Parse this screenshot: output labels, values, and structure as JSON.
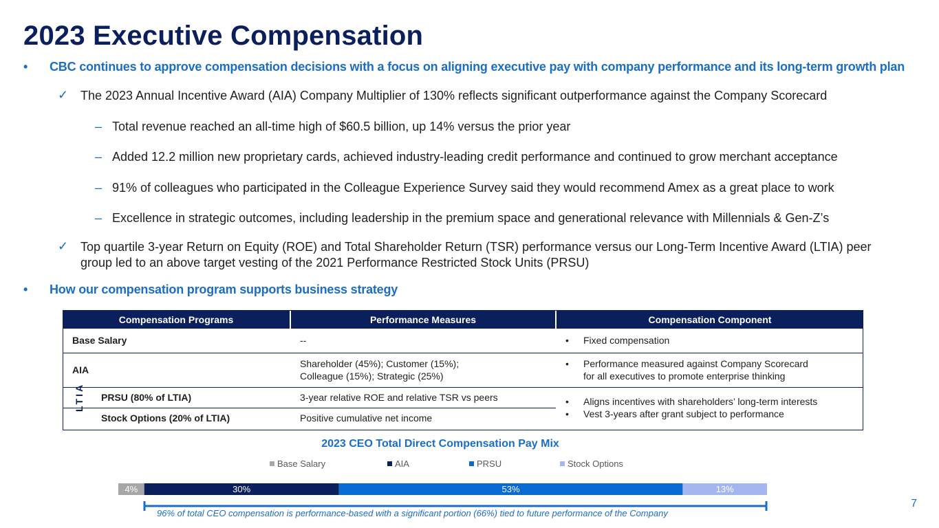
{
  "title": "2023 Executive Compensation",
  "bullets": [
    {
      "symbol": "•",
      "text": "CBC continues to approve compensation decisions with a focus on aligning executive pay with company performance and its long-term growth plan"
    },
    {
      "symbol": "•",
      "text": "How our compensation program supports business strategy"
    }
  ],
  "checks": [
    {
      "symbol": "✓",
      "text": "The 2023 Annual Incentive Award (AIA) Company Multiplier of 130% reflects significant outperformance against the Company Scorecard"
    },
    {
      "symbol": "✓",
      "text": "Top quartile 3-year Return on Equity (ROE) and Total Shareholder Return (TSR) performance versus our Long-Term Incentive Award (LTIA) peer group led to an above target vesting of the 2021 Performance Restricted Stock Units (PRSU)"
    }
  ],
  "subs": [
    {
      "symbol": "–",
      "text": "Total revenue reached an all-time high of $60.5 billion, up 14% versus the prior year"
    },
    {
      "symbol": "–",
      "text": "Added 12.2 million new proprietary cards, achieved industry-leading credit performance and continued to grow merchant acceptance"
    },
    {
      "symbol": "–",
      "text": "91% of colleagues who participated in the Colleague Experience Survey said they would recommend Amex as a great place to work"
    },
    {
      "symbol": "–",
      "text": "Excellence in strategic outcomes, including leadership in the premium space and generational relevance with Millennials & Gen-Z’s"
    }
  ],
  "table": {
    "headers": [
      "Compensation Programs",
      "Performance Measures",
      "Compensation Component"
    ],
    "ltia_label": "LTIA",
    "bullet_symbol": "•",
    "rows": [
      {
        "program": "Base Salary",
        "measure": "--",
        "component": [
          "Fixed compensation"
        ]
      },
      {
        "program": "AIA",
        "measure_lines": [
          "Shareholder (45%); Customer (15%);",
          "Colleague (15%); Strategic (25%)"
        ],
        "component_lines": [
          "Performance measured against Company Scorecard",
          "for all executives to promote enterprise thinking"
        ]
      },
      {
        "program": "PRSU (80% of LTIA)",
        "measure": "3-year relative ROE and relative TSR vs peers"
      },
      {
        "program": "Stock Options (20% of LTIA)",
        "measure": "Positive cumulative net income"
      }
    ],
    "ltia_components": [
      "Aligns incentives with shareholders’ long-term interests",
      "Vest 3-years after grant subject to performance"
    ]
  },
  "chart_data": {
    "type": "bar",
    "orientation": "horizontal-stacked",
    "title": "2023 CEO Total Direct Compensation Pay Mix",
    "series": [
      {
        "name": "Base Salary",
        "value": 4,
        "label": "4%",
        "color": "#a6a6a6"
      },
      {
        "name": "AIA",
        "value": 30,
        "label": "30%",
        "color": "#0b1f5c"
      },
      {
        "name": "PRSU",
        "value": 53,
        "label": "53%",
        "color": "#0a6ad4"
      },
      {
        "name": "Stock Options",
        "value": 13,
        "label": "13%",
        "color": "#a3b6f0"
      }
    ],
    "legend": "top",
    "annotation": "96% of total CEO compensation is performance-based with a significant portion (66%) tied to future performance of the Company"
  },
  "page_number": "7"
}
